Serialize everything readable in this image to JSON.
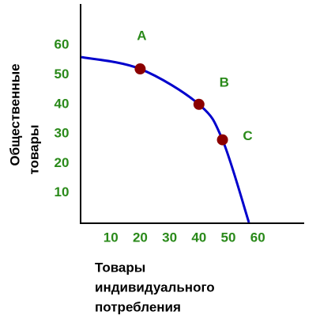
{
  "chart_data": {
    "type": "line",
    "ylabel": [
      "Общественные",
      "товары"
    ],
    "xlabel": [
      "Товары",
      "индивидуального",
      "потребления"
    ],
    "xlim": [
      0,
      75
    ],
    "ylim": [
      0,
      74
    ],
    "xticks": [
      10,
      20,
      30,
      40,
      50,
      60
    ],
    "yticks": [
      10,
      20,
      30,
      40,
      50,
      60
    ],
    "tick_color": "#2a8a1a",
    "series": [
      {
        "color": "#0000cc",
        "x": [
          0,
          20,
          40,
          48,
          57
        ],
        "values": [
          56,
          52,
          40,
          28,
          0
        ]
      }
    ],
    "points": {
      "color": "#8b0000",
      "labels": [
        "A",
        "B",
        "C"
      ],
      "x": [
        20,
        40,
        48
      ],
      "values": [
        52,
        40,
        28
      ]
    }
  }
}
